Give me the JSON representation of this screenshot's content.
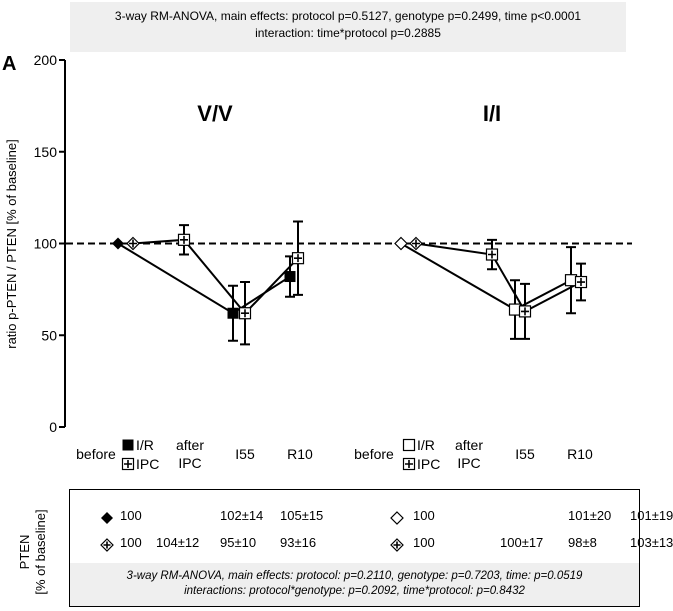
{
  "header": {
    "line1": "3-way RM-ANOVA, main effects: protocol p=0.5127, genotype p=0.2499, time p<0.0001",
    "line2": "interaction: time*protocol p=0.2885"
  },
  "chart_data": {
    "type": "line",
    "panel_label": "A",
    "ylabel": "ratio p-PTEN / PTEN [% of baseline]",
    "ylim": [
      0,
      200
    ],
    "yticks": [
      0,
      50,
      100,
      150,
      200
    ],
    "reference_line": 100,
    "groups": [
      {
        "title": "V/V",
        "x_labels": [
          "before",
          "after IPC",
          "I55",
          "R10"
        ],
        "series": [
          {
            "name": "I/R",
            "marker": "filled-diamond-square",
            "points": [
              {
                "x": "before",
                "y": 100,
                "err": 0
              },
              {
                "x": "I55",
                "y": 62,
                "err": 15
              },
              {
                "x": "R10",
                "y": 82,
                "err": 11
              }
            ]
          },
          {
            "name": "IPC",
            "marker": "cross-open",
            "points": [
              {
                "x": "before",
                "y": 100,
                "err": 0
              },
              {
                "x": "after IPC",
                "y": 102,
                "err": 8
              },
              {
                "x": "I55",
                "y": 62,
                "err": 17
              },
              {
                "x": "R10",
                "y": 92,
                "err": 20
              }
            ]
          }
        ]
      },
      {
        "title": "I/I",
        "x_labels": [
          "before",
          "after IPC",
          "I55",
          "R10"
        ],
        "series": [
          {
            "name": "I/R",
            "marker": "open-diamond-square",
            "points": [
              {
                "x": "before",
                "y": 100,
                "err": 0
              },
              {
                "x": "I55",
                "y": 64,
                "err": 16
              },
              {
                "x": "R10",
                "y": 80,
                "err": 18
              }
            ]
          },
          {
            "name": "IPC",
            "marker": "cross-open",
            "points": [
              {
                "x": "before",
                "y": 100,
                "err": 0
              },
              {
                "x": "after IPC",
                "y": 94,
                "err": 8
              },
              {
                "x": "I55",
                "y": 63,
                "err": 15
              },
              {
                "x": "R10",
                "y": 79,
                "err": 10
              }
            ]
          }
        ]
      }
    ],
    "legend": [
      "I/R",
      "IPC"
    ]
  },
  "table": {
    "label_line1": "PTEN",
    "label_line2": "[% of baseline]",
    "rows": [
      {
        "left": [
          "100",
          "",
          "102±14",
          "105±15"
        ],
        "right": [
          "100",
          "",
          "101±20",
          "101±19"
        ]
      },
      {
        "left": [
          "100",
          "104±12",
          "95±10",
          "93±16"
        ],
        "right": [
          "100",
          "100±17",
          "98±8",
          "103±13"
        ]
      }
    ],
    "footer_line1": "3-way RM-ANOVA, main effects: protocol: p=0.2110, genotype: p=0.7203, time: p=0.0519",
    "footer_line2": "interactions: protocol*genotype: p=0.2092, time*protocol: p=0.8432"
  }
}
